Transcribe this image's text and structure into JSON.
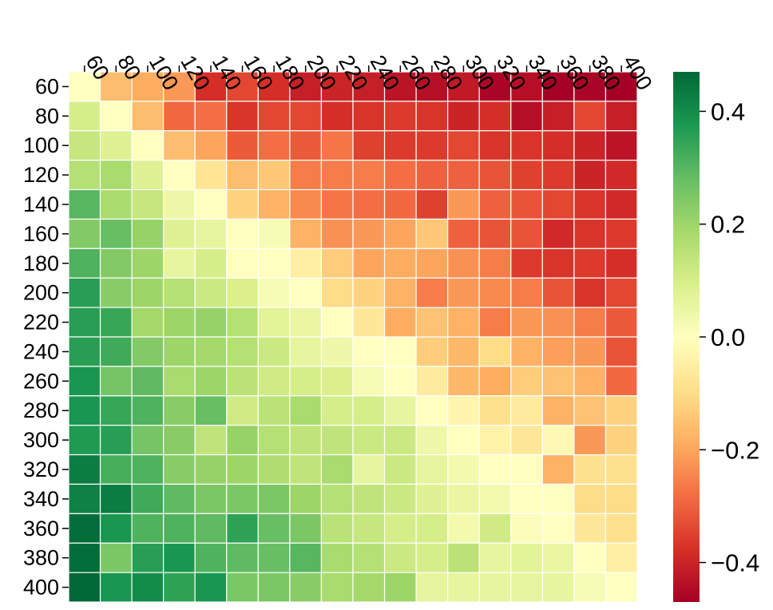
{
  "chart_data": {
    "type": "heatmap",
    "title": "",
    "xlabel": "",
    "ylabel": "",
    "x_categories": [
      "60",
      "80",
      "100",
      "120",
      "140",
      "160",
      "180",
      "200",
      "220",
      "240",
      "260",
      "280",
      "300",
      "320",
      "340",
      "360",
      "380",
      "400"
    ],
    "y_categories": [
      "60",
      "80",
      "100",
      "120",
      "140",
      "160",
      "180",
      "200",
      "220",
      "240",
      "260",
      "280",
      "300",
      "320",
      "340",
      "360",
      "380",
      "400"
    ],
    "values": [
      [
        0.0,
        -0.16,
        -0.19,
        -0.22,
        -0.38,
        -0.34,
        -0.38,
        -0.41,
        -0.4,
        -0.41,
        -0.43,
        -0.44,
        -0.42,
        -0.46,
        -0.44,
        -0.47,
        -0.46,
        -0.47
      ],
      [
        0.1,
        0.0,
        -0.16,
        -0.29,
        -0.28,
        -0.37,
        -0.34,
        -0.34,
        -0.38,
        -0.37,
        -0.36,
        -0.37,
        -0.4,
        -0.38,
        -0.44,
        -0.41,
        -0.34,
        -0.41
      ],
      [
        0.13,
        0.08,
        0.0,
        -0.16,
        -0.2,
        -0.31,
        -0.28,
        -0.31,
        -0.27,
        -0.35,
        -0.36,
        -0.36,
        -0.34,
        -0.37,
        -0.37,
        -0.38,
        -0.4,
        -0.43
      ],
      [
        0.16,
        0.18,
        0.08,
        0.0,
        -0.08,
        -0.16,
        -0.14,
        -0.26,
        -0.26,
        -0.26,
        -0.28,
        -0.3,
        -0.3,
        -0.32,
        -0.35,
        -0.36,
        -0.4,
        -0.39
      ],
      [
        0.3,
        0.18,
        0.13,
        0.04,
        0.0,
        -0.12,
        -0.18,
        -0.24,
        -0.27,
        -0.28,
        -0.29,
        -0.35,
        -0.22,
        -0.3,
        -0.32,
        -0.34,
        -0.37,
        -0.39
      ],
      [
        0.24,
        0.28,
        0.21,
        0.08,
        0.06,
        0.0,
        0.02,
        -0.18,
        -0.23,
        -0.22,
        -0.2,
        -0.14,
        -0.3,
        -0.32,
        -0.32,
        -0.39,
        -0.37,
        -0.36
      ],
      [
        0.31,
        0.24,
        0.2,
        0.06,
        0.1,
        0.0,
        0.0,
        -0.05,
        -0.13,
        -0.2,
        -0.19,
        -0.2,
        -0.23,
        -0.26,
        -0.36,
        -0.37,
        -0.36,
        -0.38
      ],
      [
        0.36,
        0.23,
        0.2,
        0.16,
        0.12,
        0.09,
        0.02,
        0.0,
        -0.1,
        -0.12,
        -0.18,
        -0.26,
        -0.22,
        -0.24,
        -0.26,
        -0.32,
        -0.37,
        -0.34
      ],
      [
        0.36,
        0.34,
        0.19,
        0.2,
        0.21,
        0.16,
        0.07,
        0.05,
        0.0,
        -0.07,
        -0.19,
        -0.15,
        -0.18,
        -0.26,
        -0.22,
        -0.23,
        -0.26,
        -0.31
      ],
      [
        0.36,
        0.33,
        0.24,
        0.2,
        0.19,
        0.16,
        0.12,
        0.06,
        0.04,
        0.0,
        0.0,
        -0.13,
        -0.17,
        -0.1,
        -0.18,
        -0.21,
        -0.22,
        -0.32
      ],
      [
        0.38,
        0.26,
        0.29,
        0.18,
        0.2,
        0.15,
        0.11,
        0.1,
        0.09,
        0.02,
        0.0,
        -0.06,
        -0.17,
        -0.19,
        -0.13,
        -0.15,
        -0.18,
        -0.29
      ],
      [
        0.38,
        0.34,
        0.31,
        0.23,
        0.28,
        0.11,
        0.15,
        0.18,
        0.1,
        0.1,
        0.06,
        0.0,
        -0.03,
        -0.09,
        -0.06,
        -0.18,
        -0.15,
        -0.12
      ],
      [
        0.37,
        0.36,
        0.26,
        0.23,
        0.14,
        0.21,
        0.16,
        0.14,
        0.14,
        0.12,
        0.12,
        0.04,
        0.0,
        -0.04,
        -0.07,
        -0.02,
        -0.22,
        -0.12
      ],
      [
        0.43,
        0.32,
        0.31,
        0.23,
        0.21,
        0.2,
        0.17,
        0.14,
        0.18,
        0.06,
        0.12,
        0.06,
        0.03,
        0.0,
        0.0,
        -0.18,
        -0.09,
        -0.09
      ],
      [
        0.42,
        0.43,
        0.33,
        0.29,
        0.25,
        0.25,
        0.25,
        0.2,
        0.16,
        0.14,
        0.12,
        0.08,
        0.05,
        0.03,
        0.0,
        0.0,
        -0.1,
        -0.1
      ],
      [
        0.46,
        0.38,
        0.31,
        0.31,
        0.29,
        0.35,
        0.28,
        0.25,
        0.15,
        0.13,
        0.1,
        0.1,
        0.03,
        0.11,
        0.01,
        0.0,
        -0.07,
        -0.09
      ],
      [
        0.46,
        0.25,
        0.36,
        0.38,
        0.31,
        0.29,
        0.28,
        0.3,
        0.18,
        0.16,
        0.12,
        0.1,
        0.15,
        0.06,
        0.07,
        0.05,
        0.0,
        -0.05
      ],
      [
        0.47,
        0.38,
        0.4,
        0.35,
        0.38,
        0.25,
        0.25,
        0.23,
        0.18,
        0.19,
        0.2,
        0.06,
        0.06,
        0.06,
        0.06,
        0.06,
        0.02,
        0.0
      ]
    ],
    "vmin": -0.47,
    "vmax": 0.47,
    "colormap": "RdYlGn",
    "colorbar_ticks": [
      0.4,
      0.2,
      0.0,
      -0.2,
      -0.4
    ],
    "colorbar_tick_labels": [
      "0.4",
      "0.2",
      "0.0",
      "−0.2",
      "−0.4"
    ],
    "cell_border_color": "#ffffff",
    "grid": false,
    "colorbar_position": "right"
  }
}
